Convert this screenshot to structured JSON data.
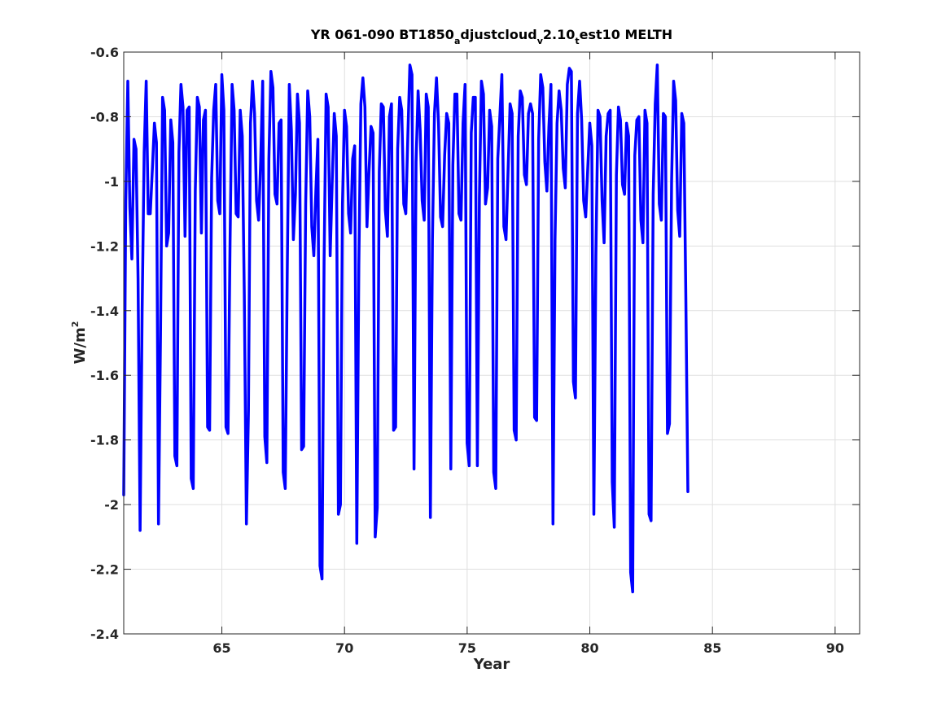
{
  "chart_data": {
    "type": "line",
    "title_parts": [
      {
        "text": "YR 061-090 BT1850",
        "style": "normal"
      },
      {
        "text": "a",
        "style": "sub"
      },
      {
        "text": "djustcloud",
        "style": "normal"
      },
      {
        "text": "v",
        "style": "sub"
      },
      {
        "text": "2.10",
        "style": "normal"
      },
      {
        "text": "t",
        "style": "sub"
      },
      {
        "text": "est10 MELTH",
        "style": "normal"
      }
    ],
    "xlabel": "Year",
    "ylabel_base": "W/m",
    "ylabel_sup": "2",
    "xlim": [
      61,
      91
    ],
    "ylim": [
      -2.4,
      -0.6
    ],
    "xticks": [
      65,
      70,
      75,
      80,
      85,
      90
    ],
    "xtick_labels": [
      "65",
      "70",
      "75",
      "80",
      "85",
      "90"
    ],
    "yticks": [
      -2.4,
      -2.2,
      -2.0,
      -1.8,
      -1.6,
      -1.4,
      -1.2,
      -1.0,
      -0.8,
      -0.6
    ],
    "ytick_labels": [
      "-2.4",
      "-2.2",
      "-2",
      "-1.8",
      "-1.6",
      "-1.4",
      "-1.2",
      "-1",
      "-0.8",
      "-0.6"
    ],
    "grid": true,
    "line_color": "#0000ff",
    "series": [
      {
        "x_start": 61.0,
        "x_step": 0.08333,
        "values": [
          -1.97,
          -1.06,
          -0.69,
          -1.08,
          -1.24,
          -0.87,
          -0.9,
          -1.3,
          -2.08,
          -1.4,
          -0.91,
          -0.69,
          -1.1,
          -1.1,
          -0.96,
          -0.82,
          -0.88,
          -2.06,
          -1.47,
          -0.74,
          -0.78,
          -1.2,
          -1.16,
          -0.81,
          -0.88,
          -1.85,
          -1.88,
          -0.91,
          -0.7,
          -0.77,
          -1.17,
          -0.78,
          -0.77,
          -1.92,
          -1.95,
          -1.03,
          -0.74,
          -0.77,
          -1.16,
          -0.81,
          -0.78,
          -1.76,
          -1.77,
          -0.99,
          -0.78,
          -0.7,
          -1.06,
          -1.1,
          -0.67,
          -0.78,
          -1.76,
          -1.78,
          -1.19,
          -0.7,
          -0.78,
          -1.1,
          -1.11,
          -0.78,
          -0.86,
          -1.35,
          -2.06,
          -1.71,
          -0.82,
          -0.69,
          -0.79,
          -1.06,
          -1.12,
          -0.94,
          -0.69,
          -1.79,
          -1.87,
          -0.93,
          -0.66,
          -0.71,
          -1.04,
          -1.07,
          -0.82,
          -0.81,
          -1.9,
          -1.95,
          -1.27,
          -0.7,
          -0.84,
          -1.18,
          -1.04,
          -0.73,
          -0.82,
          -1.83,
          -1.82,
          -1.07,
          -0.72,
          -0.8,
          -1.14,
          -1.23,
          -1.03,
          -0.87,
          -2.19,
          -2.23,
          -1.25,
          -0.73,
          -0.77,
          -1.23,
          -1.0,
          -0.79,
          -0.86,
          -2.03,
          -2.0,
          -1.07,
          -0.78,
          -0.83,
          -1.1,
          -1.16,
          -0.93,
          -0.89,
          -2.12,
          -1.26,
          -0.76,
          -0.68,
          -0.77,
          -1.14,
          -0.97,
          -0.83,
          -0.85,
          -2.1,
          -2.01,
          -0.97,
          -0.76,
          -0.77,
          -1.09,
          -1.17,
          -0.8,
          -0.76,
          -1.77,
          -1.76,
          -0.9,
          -0.74,
          -0.78,
          -1.07,
          -1.1,
          -0.86,
          -0.64,
          -0.67,
          -1.89,
          -0.94,
          -0.72,
          -0.84,
          -1.06,
          -1.12,
          -0.73,
          -0.77,
          -2.04,
          -1.18,
          -0.79,
          -0.68,
          -0.82,
          -1.11,
          -1.14,
          -0.92,
          -0.79,
          -0.82,
          -1.89,
          -0.95,
          -0.73,
          -0.73,
          -1.1,
          -1.12,
          -0.82,
          -0.7,
          -1.81,
          -1.88,
          -0.85,
          -0.74,
          -0.74,
          -1.88,
          -1.05,
          -0.69,
          -0.73,
          -1.07,
          -1.02,
          -0.78,
          -0.83,
          -1.9,
          -1.95,
          -0.93,
          -0.8,
          -0.67,
          -1.14,
          -1.18,
          -0.97,
          -0.76,
          -0.79,
          -1.77,
          -1.8,
          -0.86,
          -0.72,
          -0.74,
          -0.98,
          -1.01,
          -0.79,
          -0.76,
          -0.79,
          -1.73,
          -1.74,
          -0.87,
          -0.67,
          -0.71,
          -0.94,
          -1.03,
          -0.83,
          -0.7,
          -2.06,
          -1.18,
          -0.82,
          -0.72,
          -0.78,
          -0.96,
          -1.02,
          -0.7,
          -0.65,
          -0.66,
          -1.62,
          -1.67,
          -0.79,
          -0.69,
          -0.81,
          -1.06,
          -1.11,
          -0.96,
          -0.82,
          -0.89,
          -2.03,
          -1.23,
          -0.78,
          -0.8,
          -1.06,
          -1.19,
          -0.86,
          -0.79,
          -0.78,
          -1.93,
          -2.07,
          -0.98,
          -0.77,
          -0.81,
          -1.01,
          -1.04,
          -0.82,
          -0.86,
          -2.21,
          -2.27,
          -0.92,
          -0.81,
          -0.8,
          -1.12,
          -1.19,
          -0.78,
          -0.82,
          -2.03,
          -2.05,
          -1.04,
          -0.76,
          -0.64,
          -1.07,
          -1.12,
          -0.79,
          -0.8,
          -1.78,
          -1.75,
          -1.0,
          -0.69,
          -0.75,
          -1.09,
          -1.17,
          -0.79,
          -0.82,
          -1.36,
          -1.96
        ]
      }
    ]
  }
}
